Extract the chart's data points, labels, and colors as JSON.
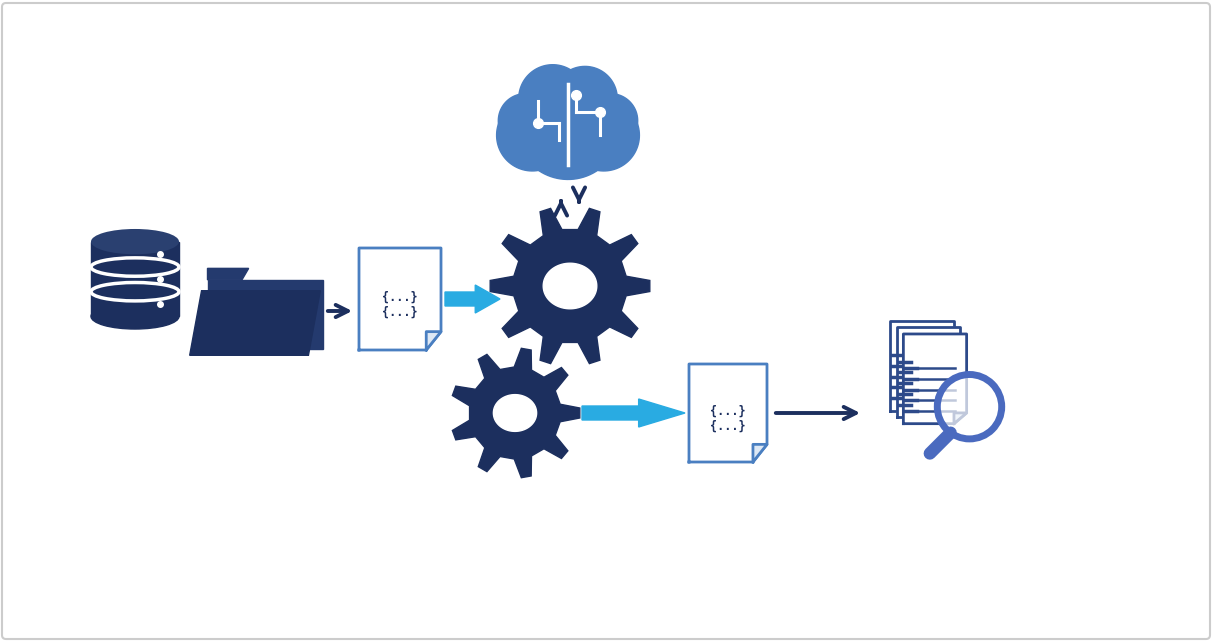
{
  "bg_color": "#ffffff",
  "border_color": "#cccccc",
  "dark_navy": "#1c2f5e",
  "mid_blue": "#243a6e",
  "arrow_blue": "#29abe2",
  "cloud_blue": "#4a7fc1",
  "doc_border": "#4a7fc1",
  "gear_color": "#1c2f5e",
  "search_color": "#2d4a8a",
  "figsize": [
    12.15,
    6.41
  ],
  "dpi": 100
}
